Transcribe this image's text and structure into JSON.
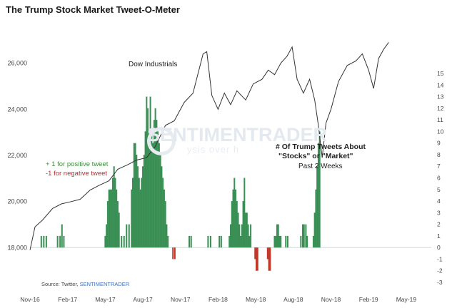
{
  "title": "The Trump Stock Market Tweet-O-Meter",
  "source": {
    "prefix": "Source: Twitter, ",
    "brand": "SENTIMENTRADER"
  },
  "watermark": {
    "main": "SENTIMENTRADER",
    "sub": "ysis over h"
  },
  "annotations": {
    "dow_label": "Dow Industrials",
    "tweets_line1": "# Of Trump Tweets About",
    "tweets_line2": "\"Stocks\" or \"Market\"",
    "tweets_line3": "Past 2 Weeks",
    "legend_positive": "+ 1 for positive tweet",
    "legend_negative": "-1 for negative tweet"
  },
  "colors": {
    "positive": "#3a8f55",
    "negative": "#c0392b",
    "line": "#333333",
    "axis": "#bbbbbb"
  },
  "chart_data": [
    {
      "type": "line",
      "name": "Dow Industrials",
      "axis": "left",
      "ylim": [
        16500,
        27500
      ],
      "yticks": [
        18000,
        20000,
        22000,
        24000,
        26000
      ],
      "ytick_labels": [
        "18,000",
        "20,000",
        "22,000",
        "24,000",
        "26,000"
      ],
      "points": [
        {
          "t": 0.0,
          "v": 17900
        },
        {
          "t": 0.4,
          "v": 18900
        },
        {
          "t": 1.0,
          "v": 19200
        },
        {
          "t": 1.8,
          "v": 19700
        },
        {
          "t": 2.5,
          "v": 19900
        },
        {
          "t": 3.3,
          "v": 20000
        },
        {
          "t": 4.0,
          "v": 20100
        },
        {
          "t": 4.8,
          "v": 20500
        },
        {
          "t": 5.5,
          "v": 20700
        },
        {
          "t": 6.3,
          "v": 20900
        },
        {
          "t": 7.0,
          "v": 21400
        },
        {
          "t": 7.8,
          "v": 21600
        },
        {
          "t": 8.5,
          "v": 21800
        },
        {
          "t": 9.3,
          "v": 21900
        },
        {
          "t": 10.0,
          "v": 22400
        },
        {
          "t": 10.8,
          "v": 23300
        },
        {
          "t": 11.5,
          "v": 23500
        },
        {
          "t": 12.3,
          "v": 24300
        },
        {
          "t": 13.0,
          "v": 24700
        },
        {
          "t": 13.8,
          "v": 26400
        },
        {
          "t": 14.1,
          "v": 26500
        },
        {
          "t": 14.5,
          "v": 24600
        },
        {
          "t": 15.0,
          "v": 24000
        },
        {
          "t": 15.5,
          "v": 24700
        },
        {
          "t": 16.0,
          "v": 24200
        },
        {
          "t": 16.5,
          "v": 24800
        },
        {
          "t": 17.2,
          "v": 24400
        },
        {
          "t": 17.8,
          "v": 25100
        },
        {
          "t": 18.5,
          "v": 25300
        },
        {
          "t": 19.0,
          "v": 25700
        },
        {
          "t": 19.5,
          "v": 25500
        },
        {
          "t": 20.0,
          "v": 26000
        },
        {
          "t": 20.5,
          "v": 26300
        },
        {
          "t": 20.9,
          "v": 26700
        },
        {
          "t": 21.3,
          "v": 25300
        },
        {
          "t": 21.8,
          "v": 24700
        },
        {
          "t": 22.3,
          "v": 25300
        },
        {
          "t": 22.7,
          "v": 24400
        },
        {
          "t": 23.0,
          "v": 23300
        },
        {
          "t": 23.3,
          "v": 21900
        },
        {
          "t": 23.6,
          "v": 23400
        },
        {
          "t": 24.0,
          "v": 24000
        },
        {
          "t": 24.6,
          "v": 25200
        },
        {
          "t": 25.3,
          "v": 25900
        },
        {
          "t": 26.0,
          "v": 26100
        },
        {
          "t": 26.5,
          "v": 26400
        },
        {
          "t": 27.0,
          "v": 25700
        },
        {
          "t": 27.4,
          "v": 24900
        },
        {
          "t": 27.8,
          "v": 26200
        },
        {
          "t": 28.2,
          "v": 26600
        },
        {
          "t": 28.6,
          "v": 26900
        }
      ]
    },
    {
      "type": "bar",
      "name": "# Of Trump Tweets About \"Stocks\" or \"Market\" (Past 2 Weeks)",
      "axis": "right",
      "ylim": [
        -3,
        15
      ],
      "yticks": [
        -3,
        -2,
        -1,
        0,
        1,
        2,
        3,
        4,
        5,
        6,
        7,
        8,
        9,
        10,
        11,
        12,
        13,
        14,
        15
      ],
      "bars": [
        {
          "t": 0.9,
          "v": 1
        },
        {
          "t": 1.1,
          "v": 1
        },
        {
          "t": 1.3,
          "v": 1
        },
        {
          "t": 2.2,
          "v": 1
        },
        {
          "t": 2.4,
          "v": 1
        },
        {
          "t": 2.55,
          "v": 2
        },
        {
          "t": 2.7,
          "v": 1
        },
        {
          "t": 6.0,
          "v": 1
        },
        {
          "t": 6.1,
          "v": 2
        },
        {
          "t": 6.2,
          "v": 4
        },
        {
          "t": 6.3,
          "v": 5
        },
        {
          "t": 6.4,
          "v": 5
        },
        {
          "t": 6.5,
          "v": 5
        },
        {
          "t": 6.6,
          "v": 6
        },
        {
          "t": 6.7,
          "v": 7
        },
        {
          "t": 6.8,
          "v": 6
        },
        {
          "t": 6.9,
          "v": 5
        },
        {
          "t": 7.0,
          "v": 4
        },
        {
          "t": 7.1,
          "v": 3
        },
        {
          "t": 7.3,
          "v": 1
        },
        {
          "t": 7.5,
          "v": 1
        },
        {
          "t": 7.7,
          "v": 2
        },
        {
          "t": 7.9,
          "v": 2
        },
        {
          "t": 8.1,
          "v": 5
        },
        {
          "t": 8.2,
          "v": 6
        },
        {
          "t": 8.3,
          "v": 9
        },
        {
          "t": 8.4,
          "v": 9
        },
        {
          "t": 8.5,
          "v": 8
        },
        {
          "t": 8.6,
          "v": 7
        },
        {
          "t": 8.7,
          "v": 6
        },
        {
          "t": 8.8,
          "v": 5
        },
        {
          "t": 8.9,
          "v": 6
        },
        {
          "t": 9.0,
          "v": 7
        },
        {
          "t": 9.1,
          "v": 8
        },
        {
          "t": 9.2,
          "v": 10
        },
        {
          "t": 9.3,
          "v": 13
        },
        {
          "t": 9.4,
          "v": 12
        },
        {
          "t": 9.5,
          "v": 10
        },
        {
          "t": 9.6,
          "v": 13
        },
        {
          "t": 9.7,
          "v": 10
        },
        {
          "t": 9.8,
          "v": 9
        },
        {
          "t": 9.9,
          "v": 11
        },
        {
          "t": 10.0,
          "v": 12
        },
        {
          "t": 10.1,
          "v": 11
        },
        {
          "t": 10.2,
          "v": 10
        },
        {
          "t": 10.3,
          "v": 9
        },
        {
          "t": 10.4,
          "v": 8
        },
        {
          "t": 10.5,
          "v": 7
        },
        {
          "t": 10.6,
          "v": 6
        },
        {
          "t": 10.7,
          "v": 5
        },
        {
          "t": 10.8,
          "v": 4
        },
        {
          "t": 10.9,
          "v": 2
        },
        {
          "t": 11.0,
          "v": 1
        },
        {
          "t": 11.4,
          "v": -1
        },
        {
          "t": 11.55,
          "v": -1
        },
        {
          "t": 12.7,
          "v": 1
        },
        {
          "t": 12.85,
          "v": 1
        },
        {
          "t": 14.2,
          "v": 1
        },
        {
          "t": 14.4,
          "v": 1
        },
        {
          "t": 15.1,
          "v": 1
        },
        {
          "t": 15.25,
          "v": 1
        },
        {
          "t": 15.9,
          "v": 1
        },
        {
          "t": 16.0,
          "v": 2
        },
        {
          "t": 16.1,
          "v": 4
        },
        {
          "t": 16.2,
          "v": 5
        },
        {
          "t": 16.3,
          "v": 6
        },
        {
          "t": 16.4,
          "v": 5
        },
        {
          "t": 16.5,
          "v": 4
        },
        {
          "t": 16.6,
          "v": 3
        },
        {
          "t": 16.7,
          "v": 2
        },
        {
          "t": 16.8,
          "v": 1
        },
        {
          "t": 16.9,
          "v": 2
        },
        {
          "t": 17.0,
          "v": 4
        },
        {
          "t": 17.1,
          "v": 6
        },
        {
          "t": 17.2,
          "v": 3
        },
        {
          "t": 17.3,
          "v": 3
        },
        {
          "t": 17.4,
          "v": 2
        },
        {
          "t": 17.5,
          "v": 1
        },
        {
          "t": 17.6,
          "v": 2
        },
        {
          "t": 17.95,
          "v": -1
        },
        {
          "t": 18.05,
          "v": -2
        },
        {
          "t": 18.15,
          "v": -2
        },
        {
          "t": 18.95,
          "v": -1
        },
        {
          "t": 19.05,
          "v": -2
        },
        {
          "t": 19.15,
          "v": -2
        },
        {
          "t": 19.5,
          "v": 1
        },
        {
          "t": 19.6,
          "v": 1
        },
        {
          "t": 19.7,
          "v": 2
        },
        {
          "t": 19.8,
          "v": 2
        },
        {
          "t": 19.9,
          "v": 1
        },
        {
          "t": 20.0,
          "v": 1
        },
        {
          "t": 20.4,
          "v": 1
        },
        {
          "t": 20.55,
          "v": 1
        },
        {
          "t": 21.6,
          "v": 1
        },
        {
          "t": 21.75,
          "v": 2
        },
        {
          "t": 21.85,
          "v": 2
        },
        {
          "t": 22.0,
          "v": 2
        },
        {
          "t": 22.1,
          "v": 1
        },
        {
          "t": 22.6,
          "v": 1
        },
        {
          "t": 22.7,
          "v": 3
        },
        {
          "t": 22.8,
          "v": 5
        },
        {
          "t": 22.9,
          "v": 7
        },
        {
          "t": 23.0,
          "v": 9
        },
        {
          "t": 23.1,
          "v": 10
        }
      ]
    }
  ],
  "x_axis": {
    "ticks": [
      {
        "t": 0,
        "label": "Nov-16"
      },
      {
        "t": 3,
        "label": "Feb-17"
      },
      {
        "t": 6,
        "label": "May-17"
      },
      {
        "t": 9,
        "label": "Aug-17"
      },
      {
        "t": 12,
        "label": "Nov-17"
      },
      {
        "t": 15,
        "label": "Feb-18"
      },
      {
        "t": 18,
        "label": "May-18"
      },
      {
        "t": 21,
        "label": "Aug-18"
      },
      {
        "t": 24,
        "label": "Nov-18"
      },
      {
        "t": 27,
        "label": "Feb-19"
      },
      {
        "t": 30,
        "label": "May-19"
      }
    ],
    "xlim": [
      0,
      32
    ]
  }
}
